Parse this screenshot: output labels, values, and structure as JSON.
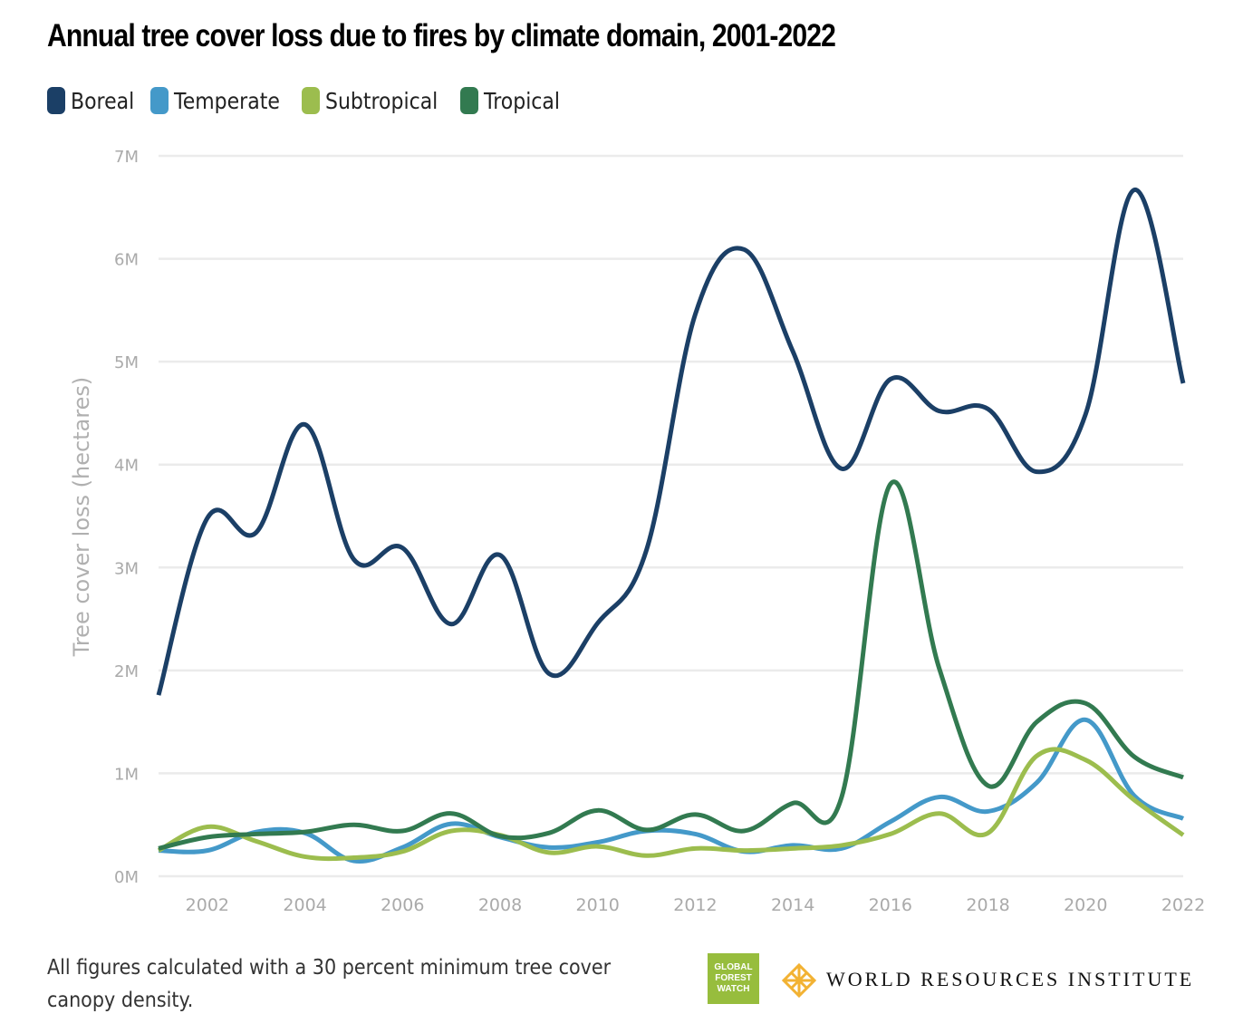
{
  "chart_data": {
    "type": "line",
    "title": "Annual tree cover loss due to fires by climate domain, 2001-2022",
    "xlabel": "",
    "ylabel": "Tree cover loss (hectares)",
    "x": [
      2001,
      2002,
      2003,
      2004,
      2005,
      2006,
      2007,
      2008,
      2009,
      2010,
      2011,
      2012,
      2013,
      2014,
      2015,
      2016,
      2017,
      2018,
      2019,
      2020,
      2021,
      2022
    ],
    "xlim": [
      2001,
      2022
    ],
    "ylim": [
      0,
      7000000
    ],
    "x_ticks": [
      "2002",
      "2004",
      "2006",
      "2008",
      "2010",
      "2012",
      "2014",
      "2016",
      "2018",
      "2020",
      "2022"
    ],
    "x_tick_values": [
      2002,
      2004,
      2006,
      2008,
      2010,
      2012,
      2014,
      2016,
      2018,
      2020,
      2022
    ],
    "y_ticks": [
      "0M",
      "1M",
      "2M",
      "3M",
      "4M",
      "5M",
      "6M",
      "7M"
    ],
    "y_tick_values": [
      0,
      1000000,
      2000000,
      3000000,
      4000000,
      5000000,
      6000000,
      7000000
    ],
    "grid": true,
    "legend_position": "top-left",
    "series": [
      {
        "name": "Boreal",
        "color": "#1b3f66",
        "values": [
          1760000,
          3480000,
          3340000,
          4390000,
          3080000,
          3190000,
          2450000,
          3120000,
          1970000,
          2460000,
          3170000,
          5460000,
          6090000,
          5100000,
          3960000,
          4830000,
          4520000,
          4540000,
          3930000,
          4490000,
          6670000,
          4790000
        ]
      },
      {
        "name": "Temperate",
        "color": "#4499c9",
        "values": [
          250000,
          250000,
          430000,
          420000,
          150000,
          280000,
          510000,
          380000,
          280000,
          330000,
          440000,
          410000,
          240000,
          300000,
          270000,
          530000,
          770000,
          630000,
          910000,
          1520000,
          780000,
          560000
        ]
      },
      {
        "name": "Subtropical",
        "color": "#9cbd4e",
        "values": [
          250000,
          480000,
          340000,
          190000,
          180000,
          240000,
          440000,
          400000,
          230000,
          290000,
          200000,
          270000,
          250000,
          270000,
          300000,
          410000,
          610000,
          420000,
          1170000,
          1130000,
          740000,
          400000
        ]
      },
      {
        "name": "Tropical",
        "color": "#327a50",
        "values": [
          270000,
          380000,
          410000,
          430000,
          500000,
          440000,
          610000,
          390000,
          420000,
          640000,
          450000,
          600000,
          440000,
          710000,
          770000,
          3810000,
          2020000,
          880000,
          1500000,
          1680000,
          1160000,
          960000
        ]
      }
    ]
  },
  "footnote": "All figures calculated with a 30 percent minimum tree cover canopy density.",
  "logos": {
    "gfw": [
      "GLOBAL",
      "FOREST",
      "WATCH"
    ],
    "wri": "WORLD RESOURCES INSTITUTE"
  }
}
